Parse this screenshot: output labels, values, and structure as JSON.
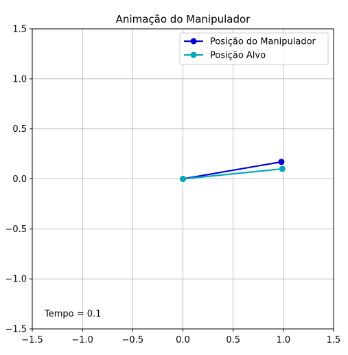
{
  "chart_data": {
    "type": "line",
    "title": "Animação do Manipulador",
    "xlabel": "",
    "ylabel": "",
    "xlim": [
      -1.5,
      1.5
    ],
    "ylim": [
      -1.5,
      1.5
    ],
    "xticks": [
      -1.5,
      -1.0,
      -0.5,
      0.0,
      0.5,
      1.0,
      1.5
    ],
    "yticks": [
      -1.5,
      -1.0,
      -0.5,
      0.0,
      0.5,
      1.0,
      1.5
    ],
    "xtick_labels": [
      "−1.5",
      "−1.0",
      "−0.5",
      "0.0",
      "0.5",
      "1.0",
      "1.5"
    ],
    "ytick_labels": [
      "−1.5",
      "−1.0",
      "−0.5",
      "0.0",
      "0.5",
      "1.0",
      "1.5"
    ],
    "grid": true,
    "legend_position": "top-right",
    "series": [
      {
        "name": "Posição do Manipulador",
        "color": "#0000dd",
        "marker": "circle",
        "points": [
          {
            "x": 0.0,
            "y": 0.0
          },
          {
            "x": 0.98,
            "y": 0.17
          }
        ]
      },
      {
        "name": "Posição Alvo",
        "color": "#00a8bf",
        "marker": "circle",
        "points": [
          {
            "x": 0.0,
            "y": 0.0
          },
          {
            "x": 0.99,
            "y": 0.1
          }
        ]
      }
    ],
    "annotations": [
      {
        "text": "Tempo = 0.1"
      }
    ]
  }
}
